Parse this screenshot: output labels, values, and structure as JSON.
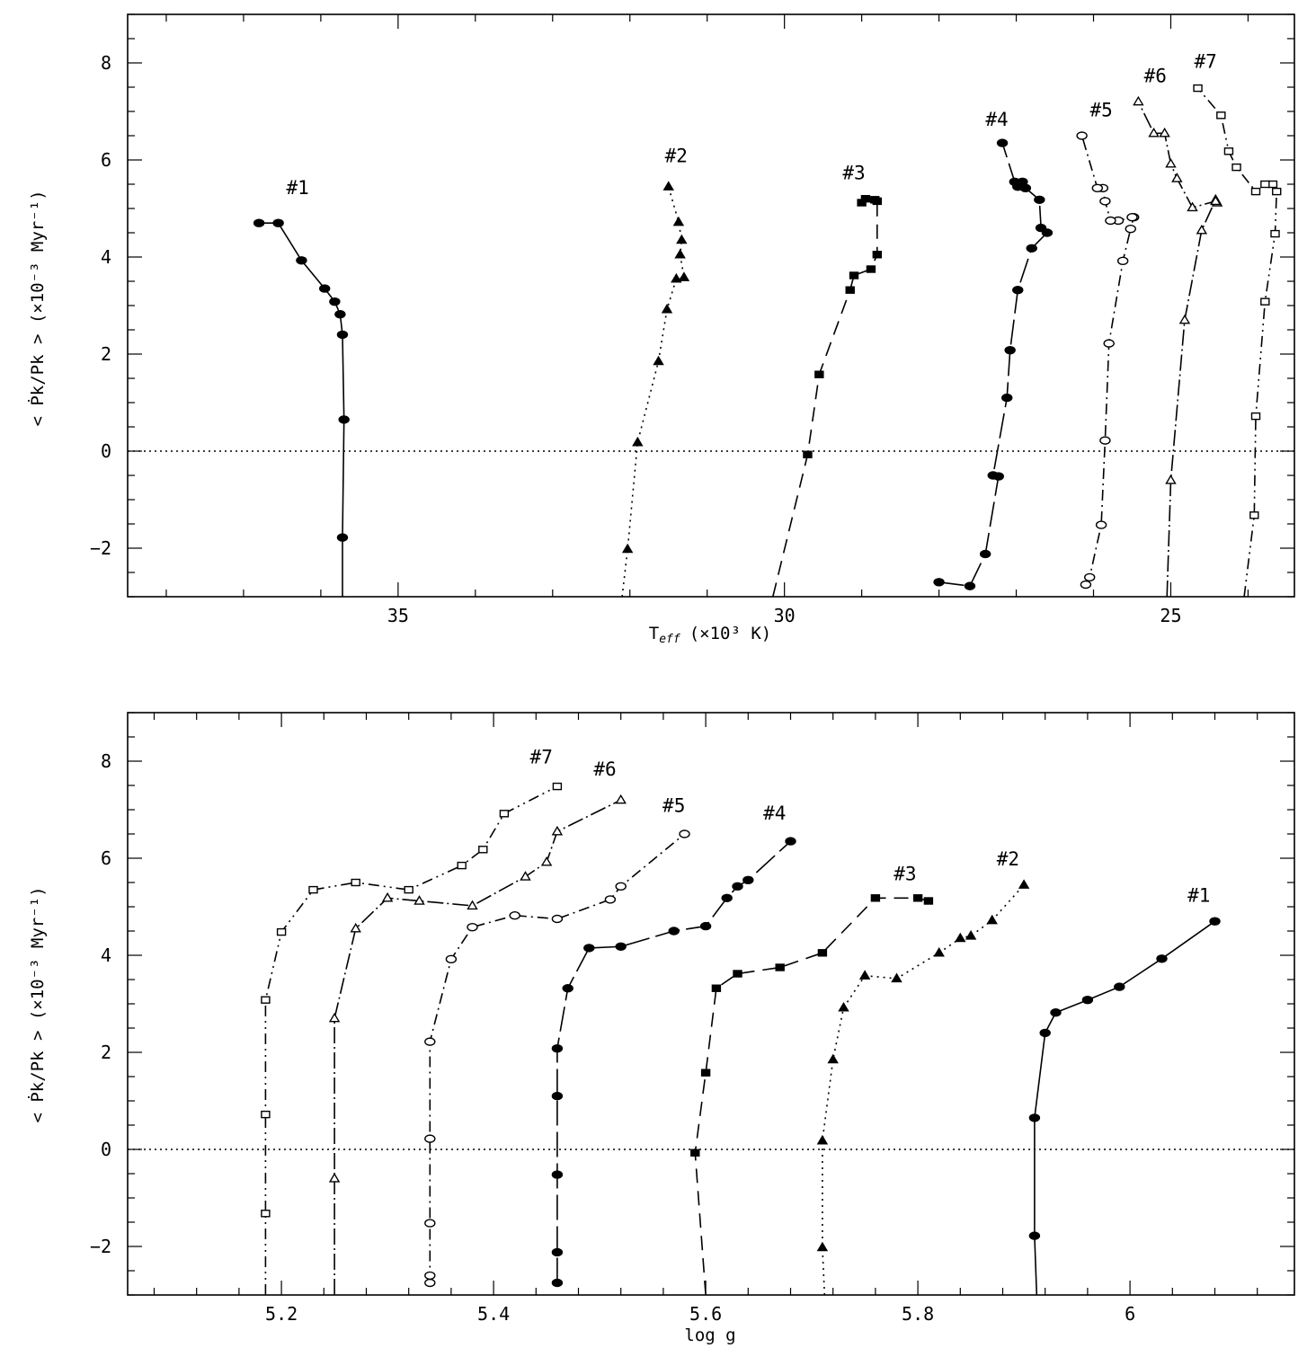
{
  "chart_data": [
    {
      "type": "line",
      "panel": "top",
      "xlabel": "T_eff (×10³ K)",
      "xlabel_main": "T",
      "xlabel_sub": "eff",
      "xlabel_rest": "(×10³ K)",
      "ylabel": "< Ṗk/Pk > (×10⁻³ Myr⁻¹)",
      "xlim": [
        38.5,
        23.4
      ],
      "ylim": [
        -3.0,
        9.0
      ],
      "x_reversed": true,
      "xticks": [
        35,
        30,
        25
      ],
      "xtick_labels": [
        "35",
        "30",
        "25"
      ],
      "yticks": [
        -2,
        0,
        2,
        4,
        6,
        8
      ],
      "ytick_labels": [
        "−2",
        "0",
        "2",
        "4",
        "6",
        "8"
      ],
      "zero_line": true,
      "series": [
        {
          "name": "#1",
          "x": [
            35.72,
            35.72,
            35.7,
            35.72,
            35.75,
            35.82,
            35.95,
            36.25,
            36.55,
            36.8
          ],
          "y": [
            -3.0,
            -1.78,
            0.65,
            2.4,
            2.82,
            3.08,
            3.35,
            3.93,
            4.7,
            4.7
          ]
        },
        {
          "name": "#2",
          "x": [
            32.1,
            32.03,
            31.9,
            31.63,
            31.52,
            31.4,
            31.3,
            31.35,
            31.33,
            31.37,
            31.5
          ],
          "y": [
            -3.0,
            -2.02,
            0.18,
            1.85,
            2.92,
            3.55,
            3.58,
            4.05,
            4.35,
            4.72,
            5.45
          ]
        },
        {
          "name": "#3",
          "x": [
            30.15,
            29.7,
            29.55,
            29.15,
            29.1,
            28.88,
            28.8,
            28.8,
            28.83,
            28.95,
            29.0
          ],
          "y": [
            -3.0,
            -0.07,
            1.58,
            3.32,
            3.62,
            3.75,
            4.05,
            5.15,
            5.18,
            5.2,
            5.12
          ]
        },
        {
          "name": "#4",
          "x": [
            28.0,
            27.6,
            27.4,
            27.23,
            27.3,
            27.12,
            27.08,
            26.98,
            26.8,
            26.6,
            26.68,
            26.7,
            26.88,
            26.92,
            26.98,
            27.02,
            27.18
          ],
          "y": [
            -2.7,
            -2.78,
            -2.12,
            -0.52,
            -0.5,
            1.1,
            2.08,
            3.32,
            4.18,
            4.5,
            4.6,
            5.18,
            5.42,
            5.55,
            5.45,
            5.55,
            6.35
          ]
        },
        {
          "name": "#5",
          "x": [
            26.1,
            26.05,
            25.9,
            25.85,
            25.8,
            25.62,
            25.52,
            25.48,
            25.5,
            25.68,
            25.78,
            25.85,
            25.88,
            25.95,
            26.15
          ],
          "y": [
            -2.75,
            -2.6,
            -1.52,
            0.22,
            2.22,
            3.92,
            4.58,
            4.82,
            4.82,
            4.75,
            4.75,
            5.15,
            5.42,
            5.42,
            6.5
          ]
        },
        {
          "name": "#6",
          "x": [
            25.05,
            25.0,
            24.82,
            24.6,
            24.42,
            24.4,
            24.42,
            24.72,
            24.92,
            25.0,
            25.08,
            25.22,
            25.42
          ],
          "y": [
            -3.0,
            -0.6,
            2.7,
            4.55,
            5.18,
            5.12,
            5.15,
            5.02,
            5.62,
            5.92,
            6.55,
            6.55,
            7.2
          ]
        },
        {
          "name": "#7",
          "x": [
            24.05,
            23.92,
            23.9,
            23.78,
            23.65,
            23.63,
            23.68,
            23.78,
            23.9,
            24.15,
            24.25,
            24.35,
            24.65
          ],
          "y": [
            -3.0,
            -1.32,
            0.72,
            3.08,
            4.48,
            5.35,
            5.5,
            5.5,
            5.35,
            5.85,
            6.18,
            6.92,
            7.48
          ]
        }
      ],
      "labels": [
        {
          "text": "#1",
          "x": 36.3,
          "y": 5.3
        },
        {
          "text": "#2",
          "x": 31.4,
          "y": 5.95
        },
        {
          "text": "#3",
          "x": 29.1,
          "y": 5.6
        },
        {
          "text": "#4",
          "x": 27.25,
          "y": 6.7
        },
        {
          "text": "#5",
          "x": 25.9,
          "y": 6.9
        },
        {
          "text": "#6",
          "x": 25.2,
          "y": 7.6
        },
        {
          "text": "#7",
          "x": 24.55,
          "y": 7.9
        }
      ]
    },
    {
      "type": "line",
      "panel": "bottom",
      "xlabel": "log g",
      "ylabel": "< Ṗk/Pk > (×10⁻³ Myr⁻¹)",
      "xlim": [
        5.055,
        6.155
      ],
      "ylim": [
        -3.0,
        9.0
      ],
      "x_reversed": false,
      "xticks": [
        5.2,
        5.4,
        5.6,
        5.8,
        6.0
      ],
      "xtick_labels": [
        "5.2",
        "5.4",
        "5.6",
        "5.8",
        "6"
      ],
      "yticks": [
        -2,
        0,
        2,
        4,
        6,
        8
      ],
      "ytick_labels": [
        "−2",
        "0",
        "2",
        "4",
        "6",
        "8"
      ],
      "zero_line": true,
      "series": [
        {
          "name": "#1",
          "x": [
            5.912,
            5.91,
            5.91,
            5.92,
            5.93,
            5.96,
            5.99,
            6.03,
            6.08
          ],
          "y": [
            -3.0,
            -1.78,
            0.65,
            2.4,
            2.82,
            3.08,
            3.35,
            3.93,
            4.7
          ]
        },
        {
          "name": "#2",
          "x": [
            5.712,
            5.71,
            5.71,
            5.72,
            5.73,
            5.75,
            5.78,
            5.82,
            5.84,
            5.85,
            5.87,
            5.9
          ],
          "y": [
            -3.0,
            -2.02,
            0.18,
            1.85,
            2.92,
            3.58,
            3.52,
            4.05,
            4.35,
            4.4,
            4.72,
            5.45
          ]
        },
        {
          "name": "#3",
          "x": [
            5.6,
            5.59,
            5.6,
            5.61,
            5.63,
            5.67,
            5.71,
            5.76,
            5.8,
            5.81
          ],
          "y": [
            -3.0,
            -0.07,
            1.58,
            3.32,
            3.62,
            3.75,
            4.05,
            5.18,
            5.18,
            5.12
          ]
        },
        {
          "name": "#4",
          "x": [
            5.46,
            5.46,
            5.46,
            5.46,
            5.46,
            5.47,
            5.49,
            5.52,
            5.57,
            5.6,
            5.62,
            5.63,
            5.64,
            5.68
          ],
          "y": [
            -2.75,
            -2.12,
            -0.52,
            1.1,
            2.08,
            3.32,
            4.15,
            4.18,
            4.5,
            4.6,
            5.18,
            5.42,
            5.55,
            6.35
          ]
        },
        {
          "name": "#5",
          "x": [
            5.34,
            5.34,
            5.34,
            5.34,
            5.34,
            5.36,
            5.38,
            5.42,
            5.46,
            5.51,
            5.52,
            5.58
          ],
          "y": [
            -2.75,
            -2.6,
            -1.52,
            0.22,
            2.22,
            3.92,
            4.58,
            4.82,
            4.75,
            5.15,
            5.42,
            6.5
          ]
        },
        {
          "name": "#6",
          "x": [
            5.25,
            5.25,
            5.25,
            5.27,
            5.3,
            5.33,
            5.38,
            5.43,
            5.45,
            5.46,
            5.52
          ],
          "y": [
            -3.0,
            -0.6,
            2.7,
            4.55,
            5.18,
            5.12,
            5.02,
            5.62,
            5.92,
            6.55,
            7.2
          ]
        },
        {
          "name": "#7",
          "x": [
            5.185,
            5.185,
            5.185,
            5.185,
            5.2,
            5.23,
            5.27,
            5.32,
            5.37,
            5.39,
            5.41,
            5.46
          ],
          "y": [
            -3.0,
            -1.32,
            0.72,
            3.08,
            4.48,
            5.35,
            5.5,
            5.35,
            5.85,
            6.18,
            6.92,
            7.48
          ]
        }
      ],
      "labels": [
        {
          "text": "#7",
          "x": 5.445,
          "y": 7.95
        },
        {
          "text": "#6",
          "x": 5.505,
          "y": 7.7
        },
        {
          "text": "#5",
          "x": 5.57,
          "y": 6.95
        },
        {
          "text": "#4",
          "x": 5.665,
          "y": 6.8
        },
        {
          "text": "#3",
          "x": 5.788,
          "y": 5.55
        },
        {
          "text": "#2",
          "x": 5.885,
          "y": 5.85
        },
        {
          "text": "#1",
          "x": 6.065,
          "y": 5.1
        }
      ]
    }
  ],
  "styles": {
    "#1": {
      "dash": "",
      "marker": "filled-circle"
    },
    "#2": {
      "dash": "2 5",
      "marker": "filled-triangle"
    },
    "#3": {
      "dash": "16 9",
      "marker": "filled-square"
    },
    "#4": {
      "dash": "28 7",
      "marker": "filled-circle"
    },
    "#5": {
      "dash": "12 5 2 5",
      "marker": "open-circle"
    },
    "#6": {
      "dash": "18 4 2 4",
      "marker": "open-triangle"
    },
    "#7": {
      "dash": "12 5 2 5 2 5",
      "marker": "open-square"
    }
  },
  "colors": {
    "ink": "#000000",
    "background": "#ffffff"
  }
}
